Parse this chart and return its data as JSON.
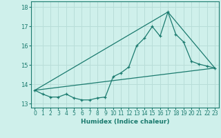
{
  "title": "",
  "xlabel": "Humidex (Indice chaleur)",
  "ylabel": "",
  "background_color": "#cff0eb",
  "plot_bg_color": "#cff0eb",
  "grid_color": "#b8ddd8",
  "line_color": "#1a7a6e",
  "xlim": [
    -0.5,
    23.5
  ],
  "ylim": [
    12.8,
    18.3
  ],
  "yticks": [
    13,
    14,
    15,
    16,
    17,
    18
  ],
  "xticks": [
    0,
    1,
    2,
    3,
    4,
    5,
    6,
    7,
    8,
    9,
    10,
    11,
    12,
    13,
    14,
    15,
    16,
    17,
    18,
    19,
    20,
    21,
    22,
    23
  ],
  "main_series_x": [
    0,
    1,
    2,
    3,
    4,
    5,
    6,
    7,
    8,
    9,
    10,
    11,
    12,
    13,
    14,
    15,
    16,
    17,
    18,
    19,
    20,
    21,
    22,
    23
  ],
  "main_series_y": [
    13.7,
    13.5,
    13.35,
    13.35,
    13.5,
    13.3,
    13.2,
    13.2,
    13.3,
    13.35,
    14.4,
    14.6,
    14.9,
    16.0,
    16.4,
    17.0,
    16.5,
    17.75,
    16.6,
    16.2,
    15.2,
    15.05,
    14.95,
    14.85
  ],
  "line2_x": [
    0,
    23
  ],
  "line2_y": [
    13.7,
    14.85
  ],
  "line3_x": [
    0,
    17,
    23
  ],
  "line3_y": [
    13.7,
    17.75,
    14.85
  ]
}
